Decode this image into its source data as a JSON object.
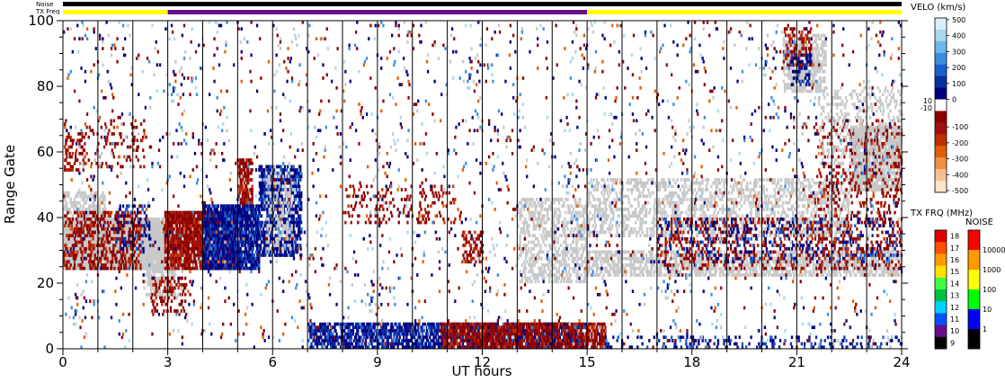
{
  "chart_data": {
    "type": "heatmap",
    "title": "",
    "xlabel": "UT hours",
    "ylabel": "Range Gate",
    "xlim": [
      0,
      24
    ],
    "ylim": [
      0,
      100
    ],
    "x_ticks": [
      0,
      3,
      6,
      9,
      12,
      15,
      18,
      21,
      24
    ],
    "y_ticks": [
      0,
      20,
      40,
      60,
      80,
      100
    ],
    "x_tick_labels": [
      "0",
      "3",
      "6",
      "9",
      "12",
      "15",
      "18",
      "21",
      "24"
    ],
    "y_tick_labels": [
      "0",
      "20",
      "40",
      "60",
      "80",
      "100"
    ],
    "scan_boundaries_hours": [
      1,
      2,
      3,
      4,
      5,
      6,
      7,
      8,
      9,
      10,
      11,
      12,
      13,
      14,
      15,
      16,
      17,
      18,
      19,
      20,
      21,
      22,
      23
    ],
    "status_bars": {
      "noise_label": "Noise",
      "txfreq_label": "TX Freq",
      "noise_color": "#000000",
      "txfreq_segments": [
        {
          "start": 0,
          "end": 3,
          "color": "#ffff00"
        },
        {
          "start": 3,
          "end": 15,
          "color": "#6a0d8a"
        },
        {
          "start": 15,
          "end": 24,
          "color": "#ffff00"
        }
      ]
    },
    "velocity_colorbar": {
      "title": "VELO (km/s)",
      "labels": [
        "500",
        "400",
        "300",
        "200",
        "100",
        "0",
        "-100",
        "-200",
        "-300",
        "-400",
        "-500"
      ],
      "side_labels": [
        "10",
        "-10"
      ],
      "colors": [
        "#dbeeff",
        "#a8d8f0",
        "#6cb8e8",
        "#3a8ee0",
        "#1a5fd0",
        "#0a2fa0",
        "#000080",
        "#ffffff",
        "#8b0000",
        "#a01010",
        "#c03000",
        "#e06000",
        "#f09040",
        "#f5c090",
        "#fbe4c8"
      ]
    },
    "txfreq_colorbar": {
      "title": "TX FRQ (MHz)",
      "labels": [
        "18",
        "17",
        "16",
        "15",
        "14",
        "13",
        "12",
        "11",
        "10",
        "9"
      ],
      "colors": [
        "#e00000",
        "#ff5000",
        "#ff9900",
        "#ffe000",
        "#40ff40",
        "#00c040",
        "#00d0ff",
        "#0050ff",
        "#6a0d8a",
        "#000000"
      ]
    },
    "noise_colorbar": {
      "title": "NOISE",
      "labels": [
        "10000",
        "1000",
        "100",
        "10",
        "1"
      ],
      "colors": [
        "#ff0000",
        "#ff9900",
        "#ffff00",
        "#00ff00",
        "#0000ff",
        "#000000"
      ]
    },
    "ground_scatter_color": "#c8c8c8",
    "features": [
      {
        "kind": "ground",
        "h0": 0.0,
        "h1": 3.0,
        "g0": 24,
        "g1": 40,
        "density": 0.9
      },
      {
        "kind": "ground",
        "h0": 0.0,
        "h1": 1.2,
        "g0": 40,
        "g1": 48,
        "density": 0.4
      },
      {
        "kind": "ground",
        "h0": 2.3,
        "h1": 3.2,
        "g0": 16,
        "g1": 26,
        "density": 0.5
      },
      {
        "kind": "neg",
        "h0": 0.0,
        "h1": 2.2,
        "g0": 24,
        "g1": 42,
        "density": 0.3
      },
      {
        "kind": "neg",
        "h0": 0.0,
        "h1": 0.6,
        "g0": 54,
        "g1": 66,
        "density": 0.25
      },
      {
        "kind": "neg",
        "h0": 0.6,
        "h1": 2.5,
        "g0": 55,
        "g1": 70,
        "density": 0.08
      },
      {
        "kind": "neg",
        "h0": 2.9,
        "h1": 5.0,
        "g0": 24,
        "g1": 42,
        "density": 0.75
      },
      {
        "kind": "neg",
        "h0": 5.0,
        "h1": 5.4,
        "g0": 38,
        "g1": 58,
        "density": 0.5
      },
      {
        "kind": "pos",
        "h0": 4.0,
        "h1": 5.6,
        "g0": 24,
        "g1": 44,
        "density": 0.75
      },
      {
        "kind": "pos",
        "h0": 5.6,
        "h1": 6.8,
        "g0": 28,
        "g1": 56,
        "density": 0.5
      },
      {
        "kind": "ground",
        "h0": 5.8,
        "h1": 6.6,
        "g0": 30,
        "g1": 54,
        "density": 0.25
      },
      {
        "kind": "pos",
        "h0": 1.5,
        "h1": 2.5,
        "g0": 30,
        "g1": 44,
        "density": 0.12
      },
      {
        "kind": "neg",
        "h0": 2.5,
        "h1": 3.5,
        "g0": 10,
        "g1": 22,
        "density": 0.2
      },
      {
        "kind": "pos",
        "h0": 7.0,
        "h1": 15.0,
        "g0": 0,
        "g1": 8,
        "density": 0.55
      },
      {
        "kind": "neg",
        "h0": 10.8,
        "h1": 15.5,
        "g0": 0,
        "g1": 8,
        "density": 0.55
      },
      {
        "kind": "pos",
        "h0": 15.5,
        "h1": 24.0,
        "g0": 0,
        "g1": 4,
        "density": 0.15
      },
      {
        "kind": "neg",
        "h0": 8.0,
        "h1": 11.2,
        "g0": 38,
        "g1": 50,
        "density": 0.12
      },
      {
        "kind": "neg",
        "h0": 11.4,
        "h1": 12.0,
        "g0": 26,
        "g1": 36,
        "density": 0.4
      },
      {
        "kind": "ground",
        "h0": 15.0,
        "h1": 24.0,
        "g0": 22,
        "g1": 30,
        "density": 0.45
      },
      {
        "kind": "ground",
        "h0": 13.0,
        "h1": 15.0,
        "g0": 20,
        "g1": 46,
        "density": 0.3
      },
      {
        "kind": "ground",
        "h0": 15.0,
        "h1": 22.5,
        "g0": 34,
        "g1": 52,
        "density": 0.3
      },
      {
        "kind": "ground",
        "h0": 22.5,
        "h1": 24.0,
        "g0": 48,
        "g1": 68,
        "density": 0.65
      },
      {
        "kind": "neg",
        "h0": 17.0,
        "h1": 24.0,
        "g0": 24,
        "g1": 40,
        "density": 0.15
      },
      {
        "kind": "pos",
        "h0": 17.0,
        "h1": 24.0,
        "g0": 26,
        "g1": 40,
        "density": 0.08
      },
      {
        "kind": "neg",
        "h0": 21.5,
        "h1": 24.0,
        "g0": 40,
        "g1": 70,
        "density": 0.12
      },
      {
        "kind": "ground",
        "h0": 20.6,
        "h1": 21.8,
        "g0": 78,
        "g1": 96,
        "density": 0.45
      },
      {
        "kind": "neg",
        "h0": 20.6,
        "h1": 21.4,
        "g0": 86,
        "g1": 98,
        "density": 0.3
      },
      {
        "kind": "pos",
        "h0": 20.8,
        "h1": 21.4,
        "g0": 80,
        "g1": 90,
        "density": 0.25
      },
      {
        "kind": "ground",
        "h0": 21.6,
        "h1": 24.0,
        "g0": 56,
        "g1": 80,
        "density": 0.15
      },
      {
        "kind": "mixed",
        "h0": 0.0,
        "h1": 24.0,
        "g0": 0,
        "g1": 100,
        "density": 0.025
      }
    ]
  }
}
